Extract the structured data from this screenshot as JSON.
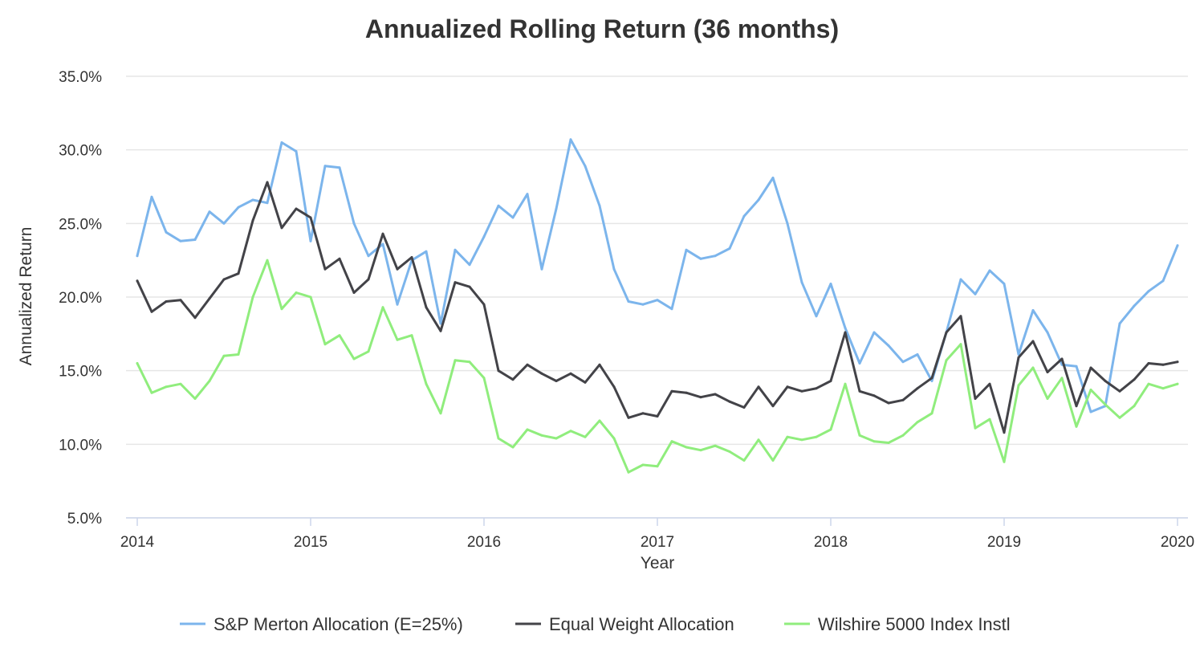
{
  "chart_data": {
    "type": "line",
    "title": "Annualized Rolling Return (36 months)",
    "xlabel": "Year",
    "ylabel": "Annualized Return",
    "ylim": [
      5.0,
      35.0
    ],
    "y_ticks": [
      "5.0%",
      "10.0%",
      "15.0%",
      "20.0%",
      "25.0%",
      "30.0%",
      "35.0%"
    ],
    "x_ticks": [
      "2014",
      "2015",
      "2016",
      "2017",
      "2018",
      "2019",
      "2020"
    ],
    "x_start": "2014-01",
    "x_end": "2020-01",
    "grid": true,
    "legend_position": "bottom",
    "x": [
      "2014-01",
      "2014-02",
      "2014-03",
      "2014-04",
      "2014-05",
      "2014-06",
      "2014-07",
      "2014-08",
      "2014-09",
      "2014-10",
      "2014-11",
      "2014-12",
      "2015-01",
      "2015-02",
      "2015-03",
      "2015-04",
      "2015-05",
      "2015-06",
      "2015-07",
      "2015-08",
      "2015-09",
      "2015-10",
      "2015-11",
      "2015-12",
      "2016-01",
      "2016-02",
      "2016-03",
      "2016-04",
      "2016-05",
      "2016-06",
      "2016-07",
      "2016-08",
      "2016-09",
      "2016-10",
      "2016-11",
      "2016-12",
      "2017-01",
      "2017-02",
      "2017-03",
      "2017-04",
      "2017-05",
      "2017-06",
      "2017-07",
      "2017-08",
      "2017-09",
      "2017-10",
      "2017-11",
      "2017-12",
      "2018-01",
      "2018-02",
      "2018-03",
      "2018-04",
      "2018-05",
      "2018-06",
      "2018-07",
      "2018-08",
      "2018-09",
      "2018-10",
      "2018-11",
      "2018-12",
      "2019-01",
      "2019-02",
      "2019-03",
      "2019-04",
      "2019-05",
      "2019-06",
      "2019-07",
      "2019-08",
      "2019-09",
      "2019-10",
      "2019-11",
      "2019-12",
      "2020-01"
    ],
    "series": [
      {
        "name": "S&P Merton Allocation (E=25%)",
        "color": "#7cb5ec",
        "values": [
          22.8,
          26.8,
          24.4,
          23.8,
          23.9,
          25.8,
          25.0,
          26.1,
          26.6,
          26.4,
          30.5,
          29.9,
          23.8,
          28.9,
          28.8,
          25.0,
          22.8,
          23.6,
          19.5,
          22.5,
          23.1,
          18.2,
          23.2,
          22.2,
          24.1,
          26.2,
          25.4,
          27.0,
          21.9,
          26.0,
          30.7,
          28.9,
          26.2,
          21.9,
          19.7,
          19.5,
          19.8,
          19.2,
          23.2,
          22.6,
          22.8,
          23.3,
          25.5,
          26.6,
          28.1,
          25.0,
          21.0,
          18.7,
          20.9,
          17.9,
          15.5,
          17.6,
          16.7,
          15.6,
          16.1,
          14.3,
          17.6,
          21.2,
          20.2,
          21.8,
          20.9,
          16.1,
          19.1,
          17.6,
          15.4,
          15.3,
          12.2,
          12.6,
          18.2,
          19.4,
          20.4,
          21.1,
          23.5
        ]
      },
      {
        "name": "Equal Weight Allocation",
        "color": "#434348",
        "values": [
          21.1,
          19.0,
          19.7,
          19.8,
          18.6,
          19.9,
          21.2,
          21.6,
          25.2,
          27.8,
          24.7,
          26.0,
          25.4,
          21.9,
          22.6,
          20.3,
          21.2,
          24.3,
          21.9,
          22.7,
          19.3,
          17.7,
          21.0,
          20.7,
          19.5,
          15.0,
          14.4,
          15.4,
          14.8,
          14.3,
          14.8,
          14.2,
          15.4,
          13.9,
          11.8,
          12.1,
          11.9,
          13.6,
          13.5,
          13.2,
          13.4,
          12.9,
          12.5,
          13.9,
          12.6,
          13.9,
          13.6,
          13.8,
          14.3,
          17.6,
          13.6,
          13.3,
          12.8,
          13.0,
          13.8,
          14.5,
          17.6,
          18.7,
          13.1,
          14.1,
          10.8,
          15.9,
          17.0,
          14.9,
          15.8,
          12.6,
          15.2,
          14.3,
          13.6,
          14.4,
          15.5,
          15.4,
          15.6
        ]
      },
      {
        "name": "Wilshire 5000 Index Instl",
        "color": "#90ed7d",
        "values": [
          15.5,
          13.5,
          13.9,
          14.1,
          13.1,
          14.3,
          16.0,
          16.1,
          20.0,
          22.5,
          19.2,
          20.3,
          20.0,
          16.8,
          17.4,
          15.8,
          16.3,
          19.3,
          17.1,
          17.4,
          14.1,
          12.1,
          15.7,
          15.6,
          14.5,
          10.4,
          9.8,
          11.0,
          10.6,
          10.4,
          10.9,
          10.5,
          11.6,
          10.4,
          8.1,
          8.6,
          8.5,
          10.2,
          9.8,
          9.6,
          9.9,
          9.5,
          8.9,
          10.3,
          8.9,
          10.5,
          10.3,
          10.5,
          11.0,
          14.1,
          10.6,
          10.2,
          10.1,
          10.6,
          11.5,
          12.1,
          15.7,
          16.8,
          11.1,
          11.7,
          8.8,
          14.0,
          15.2,
          13.1,
          14.5,
          11.2,
          13.7,
          12.7,
          11.8,
          12.6,
          14.1,
          13.8,
          14.1
        ]
      }
    ]
  }
}
